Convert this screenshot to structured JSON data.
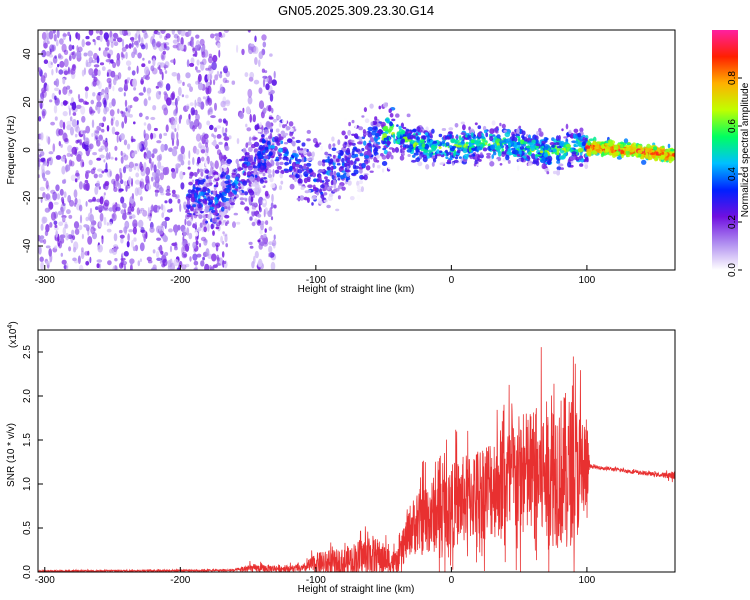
{
  "title": "GN05.2025.309.23.30.G14",
  "chart_data": [
    {
      "type": "heatmap",
      "name": "spectrogram",
      "xlabel": "Height of straight line (km)",
      "ylabel": "Frequency (Hz)",
      "xlim": [
        -305,
        165
      ],
      "ylim": [
        -50,
        50
      ],
      "x_ticks": [
        -300,
        -200,
        -100,
        0,
        100
      ],
      "y_ticks": [
        -40,
        -20,
        0,
        20,
        40
      ],
      "colorbar": {
        "label": "Normalized spectral amplitude",
        "range": [
          0,
          1
        ],
        "ticks": [
          "0.0",
          "0.2",
          "0.4",
          "0.6",
          "0.8"
        ],
        "colors": [
          "#ffffff",
          "#b08ef0",
          "#7010e0",
          "#0020ff",
          "#00c0ff",
          "#00ff60",
          "#c0ff00",
          "#ffb000",
          "#ff2000",
          "#ff20a0"
        ]
      },
      "trace": [
        {
          "x": -190,
          "y": -18
        },
        {
          "x": -175,
          "y": -22
        },
        {
          "x": -160,
          "y": -14
        },
        {
          "x": -130,
          "y": 2
        },
        {
          "x": -115,
          "y": -5
        },
        {
          "x": -100,
          "y": -12
        },
        {
          "x": -85,
          "y": -8
        },
        {
          "x": -70,
          "y": -3
        },
        {
          "x": -55,
          "y": 5
        },
        {
          "x": -45,
          "y": 8
        },
        {
          "x": -30,
          "y": 3
        },
        {
          "x": -10,
          "y": 1
        },
        {
          "x": 10,
          "y": 2
        },
        {
          "x": 30,
          "y": 3
        },
        {
          "x": 50,
          "y": 2
        },
        {
          "x": 70,
          "y": -1
        },
        {
          "x": 90,
          "y": 1
        },
        {
          "x": 110,
          "y": 1
        },
        {
          "x": 130,
          "y": 0
        },
        {
          "x": 150,
          "y": -1
        },
        {
          "x": 165,
          "y": -2
        }
      ]
    },
    {
      "type": "line",
      "name": "snr",
      "xlabel": "Height of straight line (km)",
      "ylabel": "SNR (10 * v/v)",
      "y_scale_label": "(x10",
      "y_scale_exp": "4",
      "xlim": [
        -305,
        165
      ],
      "ylim": [
        0,
        2.75
      ],
      "x_ticks": [
        -300,
        -200,
        -100,
        0,
        100
      ],
      "y_ticks": [
        "0.0",
        "0.5",
        "1.0",
        "1.5",
        "2.0",
        "2.5"
      ],
      "color": "#e83030",
      "envelope": [
        {
          "x": -305,
          "base": 0.01,
          "amp": 0.01
        },
        {
          "x": -160,
          "base": 0.02,
          "amp": 0.02
        },
        {
          "x": -150,
          "base": 0.04,
          "amp": 0.08
        },
        {
          "x": -110,
          "base": 0.04,
          "amp": 0.06
        },
        {
          "x": -100,
          "base": 0.1,
          "amp": 0.2
        },
        {
          "x": -80,
          "base": 0.1,
          "amp": 0.28
        },
        {
          "x": -60,
          "base": 0.2,
          "amp": 0.4
        },
        {
          "x": -50,
          "base": 0.15,
          "amp": 0.3
        },
        {
          "x": -40,
          "base": 0.1,
          "amp": 0.2
        },
        {
          "x": -30,
          "base": 0.5,
          "amp": 0.5
        },
        {
          "x": -20,
          "base": 0.6,
          "amp": 0.7
        },
        {
          "x": 0,
          "base": 0.75,
          "amp": 0.8
        },
        {
          "x": 20,
          "base": 0.9,
          "amp": 0.9
        },
        {
          "x": 40,
          "base": 1.05,
          "amp": 1.1
        },
        {
          "x": 60,
          "base": 1.1,
          "amp": 1.3
        },
        {
          "x": 85,
          "base": 1.15,
          "amp": 1.5
        },
        {
          "x": 100,
          "base": 1.15,
          "amp": 1.1
        },
        {
          "x": 102,
          "base": 1.2,
          "amp": 0.03
        },
        {
          "x": 155,
          "base": 1.1,
          "amp": 0.04
        },
        {
          "x": 165,
          "base": 1.1,
          "amp": 0.08
        }
      ]
    }
  ]
}
